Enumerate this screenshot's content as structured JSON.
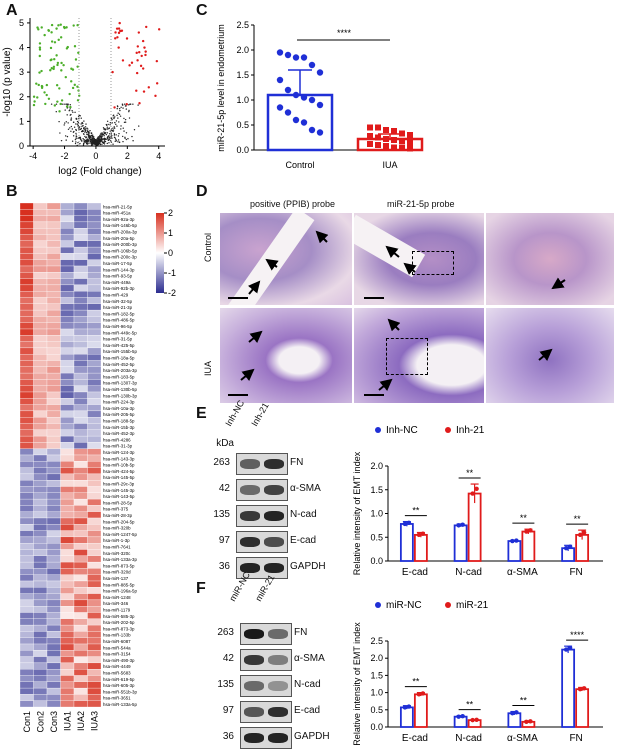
{
  "panel_letters": {
    "a": "A",
    "b": "B",
    "c": "C",
    "d": "D",
    "e": "E",
    "f": "F"
  },
  "panel_a": {
    "xlabel": "log2 (Fold change)",
    "ylabel": "-log10 (p value)",
    "xticks": [
      "-4",
      "-2",
      "0",
      "2",
      "4"
    ],
    "yticks": [
      "0",
      "1",
      "2",
      "3",
      "4",
      "5"
    ]
  },
  "panel_b": {
    "colorbar_ticks": [
      "2",
      "1",
      "0",
      "-1",
      "-2"
    ],
    "columns": [
      "Con1",
      "Con2",
      "Con3",
      "IUA1",
      "IUA2",
      "IUA3"
    ],
    "rows": [
      "hsa-miR-21-5p",
      "hsa-miR-451a",
      "hsa-miR-92a-3p",
      "hsa-miR-146b-5p",
      "hsa-miR-200a-3p",
      "hsa-miR-20a-5p",
      "hsa-miR-200b-3p",
      "hsa-miR-106b-5p",
      "hsa-miR-200c-3p",
      "hsa-miR-17-5p",
      "hsa-miR-144-3p",
      "hsa-miR-93-5p",
      "hsa-miR-449a",
      "hsa-miR-92b-3p",
      "hsa-miR-429",
      "hsa-miR-32-5p",
      "hsa-miR-21-3p",
      "hsa-miR-182-5p",
      "hsa-miR-486-5p",
      "hsa-miR-96-5p",
      "hsa-miR-449c-5p",
      "hsa-miR-31-5p",
      "hsa-miR-425-5p",
      "hsa-miR-155b-5p",
      "hsa-miR-18a-5p",
      "hsa-miR-452-5p",
      "hsa-miR-203a-3p",
      "hsa-miR-183-5p",
      "hsa-miR-1307-3p",
      "hsa-miR-130b-5p",
      "hsa-miR-130b-3p",
      "hsa-miR-224-3p",
      "hsa-miR-10a-3p",
      "hsa-miR-205-5p",
      "hsa-miR-188-5p",
      "hsa-miR-15b-3p",
      "hsa-miR-452-3p",
      "hsa-miR-4286",
      "hsa-miR-31-3p",
      "hsa-miR-124-3p",
      "hsa-miR-143-3p",
      "hsa-miR-10b-5p",
      "hsa-miR-424-5p",
      "hsa-miR-145-5p",
      "hsa-miR-29c-3p",
      "hsa-miR-145-3p",
      "hsa-miR-143-5p",
      "hsa-miR-28-5p",
      "hsa-miR-375",
      "hsa-miR-28-3p",
      "hsa-miR-204-5p",
      "hsa-miR-320b",
      "hsa-miR-1247-5p",
      "hsa-miR-1-3p",
      "hsa-miR-7641",
      "hsa-miR-320c",
      "hsa-miR-133a-3p",
      "hsa-miR-873-5p",
      "hsa-miR-320d",
      "hsa-miR-137",
      "hsa-miR-885-5p",
      "hsa-miR-196a-5p",
      "hsa-miR-1248",
      "hsa-miR-346",
      "hsa-miR-1179",
      "hsa-miR-585-3p",
      "hsa-miR-202-5p",
      "hsa-miR-873-3p",
      "hsa-miR-133b",
      "hsa-miR-6087",
      "hsa-miR-544a",
      "hsa-miR-3154",
      "hsa-miR-490-3p",
      "hsa-miR-4449",
      "hsa-miR-5683",
      "hsa-miR-619-5p",
      "hsa-miR-605-3p",
      "hsa-miR-551b-3p",
      "hsa-miR-3651",
      "hsa-miR-133a-5p"
    ]
  },
  "panel_c": {
    "ylabel": "miR-21-5p level  in endometrium",
    "significance": "****",
    "yticks": [
      "0.0",
      "0.5",
      "1.0",
      "1.5",
      "2.0",
      "2.5"
    ]
  },
  "panel_d": {
    "col1": "positive (PPIB) probe",
    "col2": "miR-21-5p probe",
    "row1": "Control",
    "row2": "IUA"
  },
  "panel_e": {
    "lanes": [
      "Inh-NC",
      "Inh-21"
    ],
    "kda_header": "kDa",
    "kda": [
      "263",
      "42",
      "135",
      "97",
      "36"
    ],
    "proteins": [
      "FN",
      "α-SMA",
      "N-cad",
      "E-cad",
      "GAPDH"
    ],
    "legend": [
      "Inh-NC",
      "Inh-21"
    ],
    "ylabel": "Relative intensity of EMT index",
    "yticks": [
      "0.0",
      "0.5",
      "1.0",
      "1.5",
      "2.0"
    ],
    "categories": [
      "E-cad",
      "N-cad",
      "α-SMA",
      "FN"
    ],
    "sig": [
      "**",
      "**",
      "**",
      "**"
    ]
  },
  "panel_f": {
    "lanes": [
      "miR-NC",
      "miR-21"
    ],
    "kda": [
      "263",
      "42",
      "135",
      "97",
      "36"
    ],
    "proteins": [
      "FN",
      "α-SMA",
      "N-cad",
      "E-cad",
      "GAPDH"
    ],
    "legend": [
      "miR-NC",
      "miR-21"
    ],
    "ylabel": "Relative intensity of EMT index",
    "yticks": [
      "0.0",
      "0.5",
      "1.0",
      "1.5",
      "2.0",
      "2.5"
    ],
    "categories": [
      "E-cad",
      "N-cad",
      "α-SMA",
      "FN"
    ],
    "sig": [
      "**",
      "**",
      "**",
      "****"
    ]
  },
  "colors": {
    "blue": "#1f2fd6",
    "red": "#e01b1b",
    "green": "#4caf2a",
    "stain_purple": "#8a6bb8",
    "stain_pink": "#e8b3c8"
  },
  "chart_data": [
    {
      "type": "scatter",
      "panel": "A",
      "xlabel": "log2 (Fold change)",
      "ylabel": "-log10 (p value)",
      "xlim": [
        -4.2,
        4.4
      ],
      "ylim": [
        0,
        5.2
      ],
      "series": [
        {
          "name": "down",
          "color": "#4caf2a"
        },
        {
          "name": "up",
          "color": "#e01b1b"
        },
        {
          "name": "ns",
          "color": "#222"
        }
      ]
    },
    {
      "type": "bar",
      "panel": "C",
      "categories": [
        "Control",
        "IUA"
      ],
      "values": [
        1.1,
        0.22
      ],
      "errors": [
        0.5,
        0.1
      ],
      "ylim": [
        0,
        2.5
      ],
      "ylabel": "miR-21-5p level  in endometrium",
      "points": {
        "Control": [
          1.95,
          1.9,
          1.85,
          1.85,
          1.7,
          1.55,
          1.4,
          1.2,
          1.1,
          1.05,
          1.0,
          0.9,
          0.85,
          0.75,
          0.6,
          0.55,
          0.4,
          0.35
        ],
        "IUA": [
          0.45,
          0.45,
          0.4,
          0.38,
          0.33,
          0.3,
          0.28,
          0.25,
          0.22,
          0.2,
          0.18,
          0.15,
          0.12,
          0.1,
          0.08,
          0.05,
          0.05,
          0.03
        ]
      }
    },
    {
      "type": "bar",
      "panel": "E",
      "categories": [
        "E-cad",
        "N-cad",
        "α-SMA",
        "FN"
      ],
      "ylim": [
        0,
        2.0
      ],
      "series": [
        {
          "name": "Inh-NC",
          "values": [
            0.78,
            0.75,
            0.42,
            0.27
          ],
          "errors": [
            0.05,
            0.03,
            0.02,
            0.06
          ]
        },
        {
          "name": "Inh-21",
          "values": [
            0.55,
            1.42,
            0.62,
            0.55
          ],
          "errors": [
            0.05,
            0.2,
            0.05,
            0.1
          ]
        }
      ]
    },
    {
      "type": "bar",
      "panel": "F",
      "categories": [
        "E-cad",
        "N-cad",
        "α-SMA",
        "FN"
      ],
      "ylim": [
        0,
        2.5
      ],
      "series": [
        {
          "name": "miR-NC",
          "values": [
            0.57,
            0.3,
            0.4,
            2.25
          ],
          "errors": [
            0.05,
            0.03,
            0.05,
            0.1
          ]
        },
        {
          "name": "miR-21",
          "values": [
            0.95,
            0.2,
            0.15,
            1.1
          ],
          "errors": [
            0.05,
            0.02,
            0.03,
            0.05
          ]
        }
      ]
    }
  ]
}
